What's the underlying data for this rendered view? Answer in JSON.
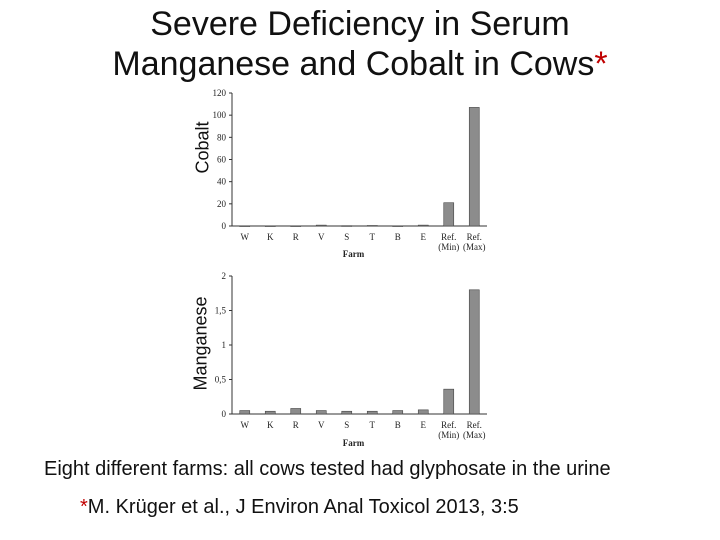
{
  "title_line1": "Severe Deficiency in Serum",
  "title_line2": "Manganese and Cobalt in Cows",
  "title_star": "*",
  "caption": "Eight different farms: all cows tested had glyphosate in the urine",
  "citation_star": "*",
  "citation_text": "M. Krüger et al., J Environ Anal Toxicol 2013, 3:5",
  "colors": {
    "bar": "#8c8c8c",
    "star": "#c00000"
  },
  "chart_data": [
    {
      "type": "bar",
      "title": "",
      "ylabel": "Cobalt",
      "xlabel": "Farm",
      "categories": [
        "W",
        "K",
        "R",
        "V",
        "S",
        "T",
        "B",
        "E",
        "Ref.\n(Min)",
        "Ref.\n(Max)"
      ],
      "values": [
        0.2,
        0.2,
        0.2,
        0.8,
        0.3,
        0.5,
        0.2,
        0.8,
        21,
        107
      ],
      "ylim": [
        0,
        120
      ],
      "yticks": [
        "0",
        "20",
        "40",
        "60",
        "80",
        "100",
        "120"
      ],
      "grid": false
    },
    {
      "type": "bar",
      "title": "",
      "ylabel": "Manganese",
      "xlabel": "Farm",
      "categories": [
        "W",
        "K",
        "R",
        "V",
        "S",
        "T",
        "B",
        "E",
        "Ref.\n(Min)",
        "Ref.\n(Max)"
      ],
      "values": [
        0.05,
        0.04,
        0.08,
        0.05,
        0.04,
        0.04,
        0.05,
        0.06,
        0.36,
        1.8
      ],
      "ylim": [
        0,
        2
      ],
      "yticks": [
        "0",
        "0,5",
        "1",
        "1,5",
        "2"
      ],
      "grid": false
    }
  ]
}
